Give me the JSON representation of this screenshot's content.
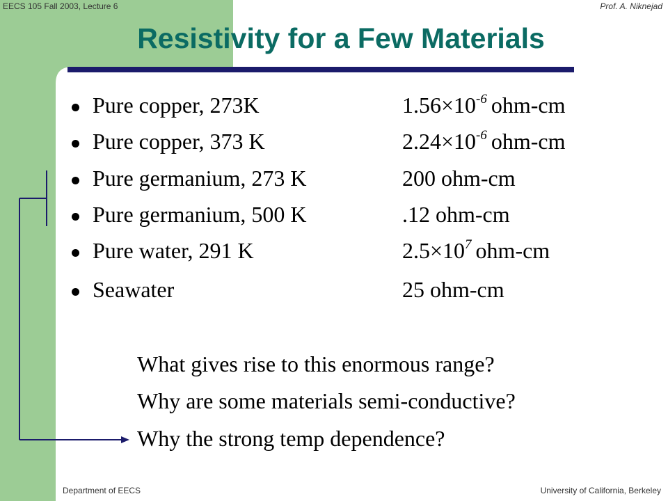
{
  "header": {
    "left": "EECS 105 Fall 2003, Lecture 6",
    "right": "Prof. A. Niknejad"
  },
  "title": "Resistivity for a Few Materials",
  "items": [
    {
      "label": "Pure copper, 273K",
      "value": {
        "text": "1.56×10",
        "sup": "-6",
        "after": "ohm-cm"
      }
    },
    {
      "label": "Pure copper, 373 K",
      "value": {
        "text": "2.24×10",
        "sup": "-6",
        "after": "ohm-cm"
      }
    },
    {
      "label": "Pure germanium, 273 K",
      "value": {
        "text": "200 ohm-cm"
      }
    },
    {
      "label": "Pure germanium, 500 K",
      "value": {
        "text": ".12 ohm-cm"
      }
    },
    {
      "label": "Pure water, 291 K",
      "value": {
        "text": "2.5×10",
        "sup": "7",
        "after": "ohm-cm"
      }
    },
    {
      "label": "Seawater",
      "value": {
        "text": "25 ohm-cm"
      }
    }
  ],
  "questions": [
    "What gives rise to this enormous range?",
    "Why are some materials semi-conductive?",
    "Why the strong temp dependence?"
  ],
  "footer": {
    "left": "Department of EECS",
    "right": "University of California, Berkeley"
  }
}
